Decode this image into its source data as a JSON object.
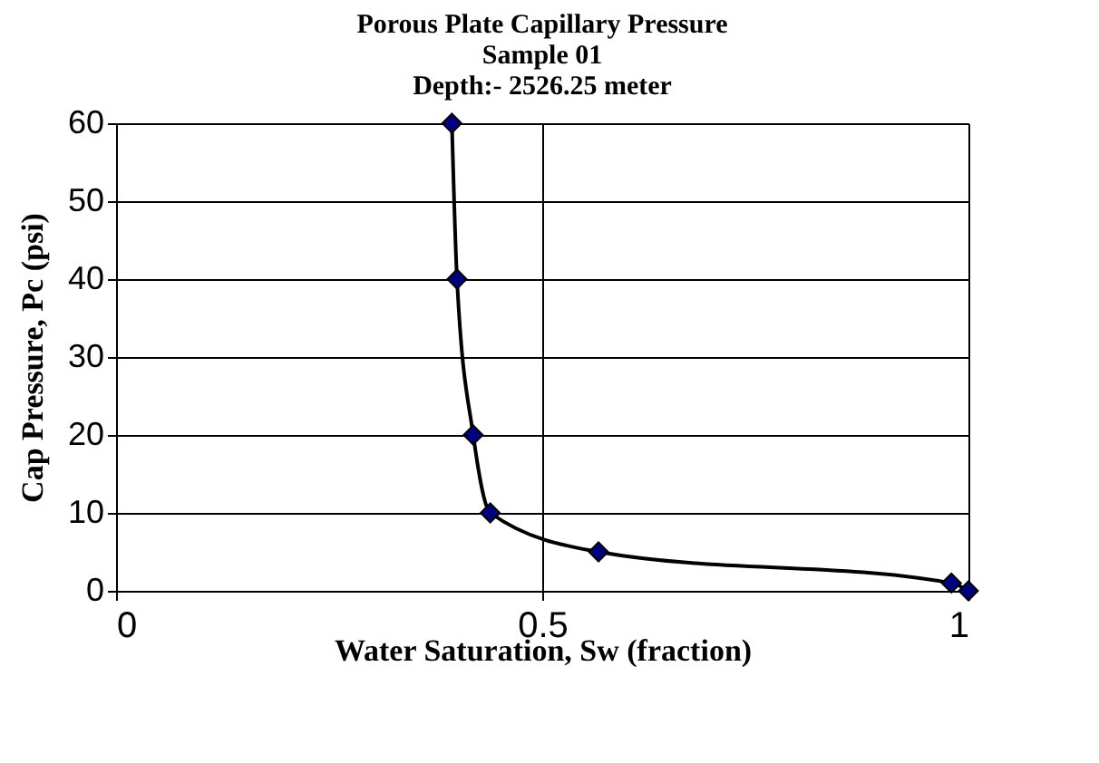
{
  "chart_data": {
    "type": "line",
    "title": "Porous Plate Capillary Pressure",
    "subtitle": "Sample 01\nDepth:- 2526.25 meter",
    "xlabel": "Water Saturation, Sw (fraction)",
    "ylabel": "Cap Pressure, Pc (psi)",
    "series": [
      {
        "color": "#000080",
        "x": [
          0.394,
          0.4,
          0.419,
          0.439,
          0.566,
          0.98,
          1.0
        ],
        "values": [
          60,
          40,
          20,
          10,
          5,
          1,
          0
        ]
      }
    ],
    "xlim": [
      0,
      1
    ],
    "xticks": [
      0,
      0.5,
      1
    ],
    "ylim": [
      0,
      60
    ],
    "yticks": [
      0,
      10,
      20,
      30,
      40,
      50,
      60
    ],
    "grid": true,
    "legend": false,
    "marker": "diamond",
    "line_style": "solid"
  }
}
